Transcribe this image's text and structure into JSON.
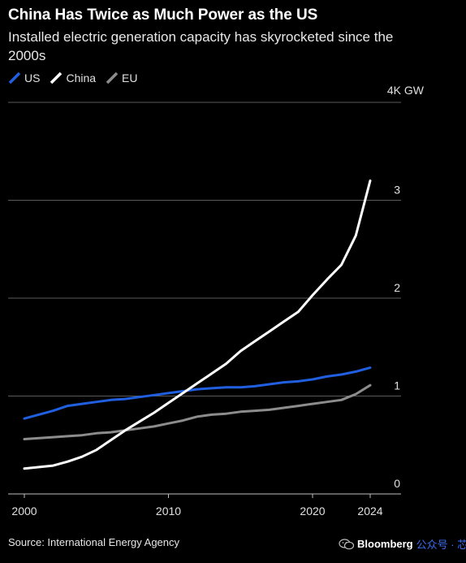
{
  "header": {
    "title": "China Has Twice as Much Power as the US",
    "subtitle": "Installed electric generation capacity has skyrocketed since the 2000s"
  },
  "footer": {
    "source": "Source: International Energy Agency",
    "brand": "Bloomberg",
    "brand_sub": "公众号 · 芯智讯",
    "brand_icon": "wechat-icon"
  },
  "chart_data": {
    "type": "line",
    "title": "China Has Twice as Much Power as the US",
    "subtitle": "Installed electric generation capacity has skyrocketed since the 2000s",
    "xlabel": "",
    "ylabel": "",
    "unit_label": "4K GW",
    "x": [
      2000,
      2002,
      2003,
      2004,
      2005,
      2006,
      2007,
      2008,
      2009,
      2010,
      2011,
      2012,
      2013,
      2014,
      2015,
      2016,
      2017,
      2018,
      2019,
      2020,
      2021,
      2022,
      2023,
      2024
    ],
    "xlim": [
      1999.2,
      2025.8
    ],
    "xticks": [
      2000,
      2010,
      2020,
      2024
    ],
    "ylim": [
      0,
      4
    ],
    "yticks": [
      0,
      1,
      2,
      3
    ],
    "grid": true,
    "legend_position": "top-left",
    "series": [
      {
        "name": "US",
        "color": "#1f5fe0",
        "values": [
          0.77,
          0.85,
          0.9,
          0.92,
          0.94,
          0.96,
          0.97,
          0.99,
          1.01,
          1.03,
          1.05,
          1.07,
          1.08,
          1.09,
          1.09,
          1.1,
          1.12,
          1.14,
          1.15,
          1.17,
          1.2,
          1.22,
          1.25,
          1.29
        ]
      },
      {
        "name": "China",
        "color": "#ffffff",
        "values": [
          0.26,
          0.29,
          0.33,
          0.38,
          0.45,
          0.55,
          0.65,
          0.74,
          0.83,
          0.93,
          1.03,
          1.13,
          1.23,
          1.33,
          1.46,
          1.56,
          1.66,
          1.76,
          1.86,
          2.03,
          2.19,
          2.34,
          2.64,
          3.2
        ]
      },
      {
        "name": "EU",
        "color": "#8c8c8c",
        "values": [
          0.56,
          0.58,
          0.59,
          0.6,
          0.62,
          0.63,
          0.65,
          0.67,
          0.69,
          0.72,
          0.75,
          0.79,
          0.81,
          0.82,
          0.84,
          0.85,
          0.86,
          0.88,
          0.9,
          0.92,
          0.94,
          0.96,
          1.02,
          1.11
        ]
      }
    ]
  }
}
